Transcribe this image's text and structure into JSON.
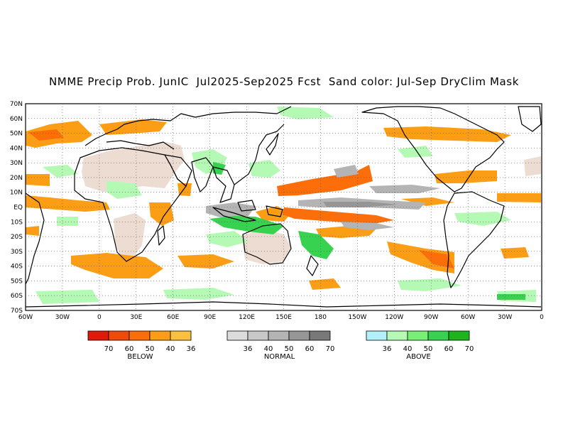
{
  "title": "NMME Precip Prob. JunIC  Jul2025-Sep2025 Fcst  Sand color: Jul-Sep DryClim Mask",
  "map": {
    "projection": "equirectangular",
    "lon_range": [
      -60,
      0
    ],
    "lat_range": [
      -70,
      70
    ],
    "lat_labels": [
      "70N",
      "60N",
      "50N",
      "40N",
      "30N",
      "20N",
      "10N",
      "EQ",
      "10S",
      "20S",
      "30S",
      "40S",
      "50S",
      "60S",
      "70S"
    ],
    "lon_labels": [
      "60W",
      "30W",
      "0",
      "30E",
      "60E",
      "90E",
      "120E",
      "150E",
      "180",
      "150W",
      "120W",
      "90W",
      "60W",
      "30W",
      "0"
    ],
    "grid": "dotted"
  },
  "legends": [
    {
      "title": "BELOW",
      "labels": [
        "70",
        "60",
        "50",
        "40",
        "36"
      ],
      "colors": [
        "#e01a0a",
        "#f04a0a",
        "#fb6e0a",
        "#fb9e16",
        "#fbc040"
      ]
    },
    {
      "title": "NORMAL",
      "labels": [
        "36",
        "40",
        "50",
        "60",
        "70"
      ],
      "colors": [
        "#dcdcdc",
        "#c8c8c8",
        "#b4b4b4",
        "#969696",
        "#787878"
      ]
    },
    {
      "title": "ABOVE",
      "labels": [
        "36",
        "40",
        "50",
        "60",
        "70"
      ],
      "colors": [
        "#b4f0fa",
        "#b4fab4",
        "#78f078",
        "#37d250",
        "#1eb41e"
      ]
    }
  ],
  "colors": {
    "dry_mask": "#ecdcd2",
    "below": "#fb9e16",
    "below_strong": "#fb6e0a",
    "normal": "#b4b4b4",
    "above": "#b4fab4",
    "above_strong": "#37d250",
    "coast": "#000000"
  }
}
